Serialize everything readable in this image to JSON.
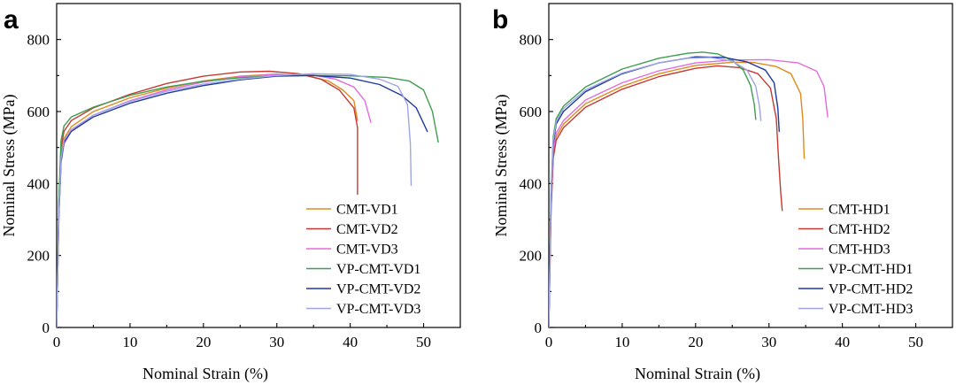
{
  "colors": {
    "c1": "#E08A1E",
    "c2": "#C33A33",
    "c3": "#E36CDC",
    "c4": "#3F9E50",
    "c5": "#1F3A9E",
    "c6": "#9EA6E6"
  },
  "chart_data": [
    {
      "type": "line",
      "panel_label": "a",
      "xlabel": "Nominal Strain (%)",
      "ylabel": "Nominal Stress (MPa)",
      "xlim": [
        0,
        55
      ],
      "ylim": [
        0,
        900
      ],
      "x_ticks": [
        0,
        10,
        20,
        30,
        40,
        50
      ],
      "y_ticks": [
        0,
        200,
        400,
        600,
        800
      ],
      "x_tick_labels": [
        "0",
        "10",
        "20",
        "30",
        "40",
        "50"
      ],
      "y_tick_labels": [
        "0",
        "200",
        "400",
        "600",
        "800"
      ],
      "legend_position": "bottom-right",
      "series": [
        {
          "name": "CMT-VD1",
          "color": "#E08A1E",
          "points": [
            [
              0,
              0
            ],
            [
              0.3,
              330
            ],
            [
              0.6,
              480
            ],
            [
              1,
              525
            ],
            [
              2,
              558
            ],
            [
              5,
              600
            ],
            [
              10,
              638
            ],
            [
              15,
              665
            ],
            [
              20,
              685
            ],
            [
              25,
              698
            ],
            [
              30,
              704
            ],
            [
              34,
              700
            ],
            [
              37,
              685
            ],
            [
              39,
              660
            ],
            [
              40.5,
              630
            ],
            [
              41,
              575
            ]
          ]
        },
        {
          "name": "CMT-VD2",
          "color": "#C33A33",
          "points": [
            [
              0,
              0
            ],
            [
              0.3,
              350
            ],
            [
              0.6,
              500
            ],
            [
              1,
              545
            ],
            [
              2,
              575
            ],
            [
              5,
              610
            ],
            [
              10,
              648
            ],
            [
              15,
              678
            ],
            [
              20,
              698
            ],
            [
              25,
              710
            ],
            [
              29,
              712
            ],
            [
              33,
              705
            ],
            [
              36,
              690
            ],
            [
              38.5,
              660
            ],
            [
              40.5,
              610
            ],
            [
              41,
              555
            ],
            [
              41,
              370
            ]
          ]
        },
        {
          "name": "CMT-VD3",
          "color": "#E36CDC",
          "points": [
            [
              0,
              0
            ],
            [
              0.3,
              310
            ],
            [
              0.6,
              460
            ],
            [
              1,
              510
            ],
            [
              2,
              545
            ],
            [
              5,
              590
            ],
            [
              10,
              630
            ],
            [
              15,
              660
            ],
            [
              20,
              682
            ],
            [
              25,
              697
            ],
            [
              30,
              703
            ],
            [
              35,
              701
            ],
            [
              38,
              690
            ],
            [
              40.5,
              668
            ],
            [
              42,
              630
            ],
            [
              42.8,
              570
            ]
          ]
        },
        {
          "name": "VP-CMT-VD1",
          "color": "#3F9E50",
          "points": [
            [
              0,
              0
            ],
            [
              0.3,
              360
            ],
            [
              0.6,
              520
            ],
            [
              1,
              560
            ],
            [
              2,
              585
            ],
            [
              5,
              612
            ],
            [
              10,
              645
            ],
            [
              15,
              668
            ],
            [
              20,
              684
            ],
            [
              25,
              694
            ],
            [
              30,
              699
            ],
            [
              35,
              700
            ],
            [
              40,
              699
            ],
            [
              45,
              695
            ],
            [
              48,
              685
            ],
            [
              50,
              660
            ],
            [
              51.2,
              600
            ],
            [
              52,
              515
            ]
          ]
        },
        {
          "name": "VP-CMT-VD2",
          "color": "#1F3A9E",
          "points": [
            [
              0,
              0
            ],
            [
              0.3,
              310
            ],
            [
              0.6,
              460
            ],
            [
              1,
              515
            ],
            [
              2,
              545
            ],
            [
              5,
              585
            ],
            [
              10,
              623
            ],
            [
              15,
              651
            ],
            [
              20,
              672
            ],
            [
              25,
              688
            ],
            [
              30,
              698
            ],
            [
              35,
              700
            ],
            [
              40,
              693
            ],
            [
              44,
              675
            ],
            [
              47,
              645
            ],
            [
              49,
              610
            ],
            [
              50.5,
              545
            ]
          ]
        },
        {
          "name": "VP-CMT-VD3",
          "color": "#9EA6E6",
          "points": [
            [
              0,
              0
            ],
            [
              0.3,
              320
            ],
            [
              0.6,
              470
            ],
            [
              1,
              520
            ],
            [
              2,
              550
            ],
            [
              5,
              590
            ],
            [
              10,
              628
            ],
            [
              15,
              656
            ],
            [
              20,
              676
            ],
            [
              25,
              690
            ],
            [
              30,
              700
            ],
            [
              35,
              705
            ],
            [
              40,
              703
            ],
            [
              44,
              690
            ],
            [
              46.5,
              670
            ],
            [
              47.8,
              620
            ],
            [
              48.2,
              510
            ],
            [
              48.3,
              395
            ]
          ]
        }
      ]
    },
    {
      "type": "line",
      "panel_label": "b",
      "xlabel": "Nominal Strain (%)",
      "ylabel": "Nominal Stress (MPa)",
      "xlim": [
        0,
        55
      ],
      "ylim": [
        0,
        900
      ],
      "x_ticks": [
        0,
        10,
        20,
        30,
        40,
        50
      ],
      "y_ticks": [
        0,
        200,
        400,
        600,
        800
      ],
      "x_tick_labels": [
        "0",
        "10",
        "20",
        "30",
        "40",
        "50"
      ],
      "y_tick_labels": [
        "0",
        "200",
        "400",
        "600",
        "800"
      ],
      "legend_position": "bottom-right",
      "series": [
        {
          "name": "CMT-HD1",
          "color": "#E08A1E",
          "points": [
            [
              0,
              0
            ],
            [
              0.3,
              330
            ],
            [
              0.6,
              480
            ],
            [
              1,
              530
            ],
            [
              2,
              565
            ],
            [
              5,
              622
            ],
            [
              10,
              670
            ],
            [
              15,
              705
            ],
            [
              20,
              728
            ],
            [
              25,
              737
            ],
            [
              28,
              736
            ],
            [
              31,
              725
            ],
            [
              33,
              705
            ],
            [
              34.3,
              650
            ],
            [
              34.6,
              580
            ],
            [
              34.8,
              470
            ]
          ]
        },
        {
          "name": "CMT-HD2",
          "color": "#C33A33",
          "points": [
            [
              0,
              0
            ],
            [
              0.3,
              320
            ],
            [
              0.6,
              470
            ],
            [
              1,
              520
            ],
            [
              2,
              555
            ],
            [
              5,
              612
            ],
            [
              10,
              662
            ],
            [
              15,
              697
            ],
            [
              20,
              720
            ],
            [
              23,
              727
            ],
            [
              26,
              722
            ],
            [
              28.5,
              705
            ],
            [
              30.2,
              665
            ],
            [
              31,
              580
            ],
            [
              31.3,
              470
            ],
            [
              31.6,
              375
            ],
            [
              31.8,
              325
            ]
          ]
        },
        {
          "name": "CMT-HD3",
          "color": "#E36CDC",
          "points": [
            [
              0,
              0
            ],
            [
              0.3,
              340
            ],
            [
              0.6,
              490
            ],
            [
              1,
              540
            ],
            [
              2,
              575
            ],
            [
              5,
              632
            ],
            [
              10,
              680
            ],
            [
              15,
              713
            ],
            [
              20,
              735
            ],
            [
              25,
              743
            ],
            [
              30,
              744
            ],
            [
              34,
              735
            ],
            [
              36.5,
              712
            ],
            [
              37.5,
              670
            ],
            [
              38,
              585
            ]
          ]
        },
        {
          "name": "VP-CMT-HD1",
          "color": "#3F9E50",
          "points": [
            [
              0,
              0
            ],
            [
              0.3,
              380
            ],
            [
              0.6,
              530
            ],
            [
              1,
              580
            ],
            [
              2,
              615
            ],
            [
              5,
              668
            ],
            [
              10,
              718
            ],
            [
              15,
              748
            ],
            [
              19,
              762
            ],
            [
              21,
              765
            ],
            [
              23,
              760
            ],
            [
              25,
              742
            ],
            [
              26.5,
              715
            ],
            [
              27.5,
              672
            ],
            [
              28,
              620
            ],
            [
              28.2,
              578
            ]
          ]
        },
        {
          "name": "VP-CMT-HD2",
          "color": "#1F3A9E",
          "points": [
            [
              0,
              0
            ],
            [
              0.3,
              360
            ],
            [
              0.6,
              510
            ],
            [
              1,
              565
            ],
            [
              2,
              600
            ],
            [
              5,
              655
            ],
            [
              10,
              705
            ],
            [
              15,
              735
            ],
            [
              20,
              752
            ],
            [
              24,
              750
            ],
            [
              27,
              738
            ],
            [
              29.5,
              715
            ],
            [
              30.7,
              680
            ],
            [
              31.2,
              610
            ],
            [
              31.4,
              545
            ]
          ]
        },
        {
          "name": "VP-CMT-HD3",
          "color": "#9EA6E6",
          "points": [
            [
              0,
              0
            ],
            [
              0.3,
              370
            ],
            [
              0.6,
              520
            ],
            [
              1,
              572
            ],
            [
              2,
              608
            ],
            [
              5,
              660
            ],
            [
              10,
              707
            ],
            [
              15,
              735
            ],
            [
              19,
              748
            ],
            [
              22,
              750
            ],
            [
              25,
              740
            ],
            [
              27,
              715
            ],
            [
              28.2,
              670
            ],
            [
              28.7,
              615
            ],
            [
              28.9,
              575
            ]
          ]
        }
      ]
    }
  ]
}
